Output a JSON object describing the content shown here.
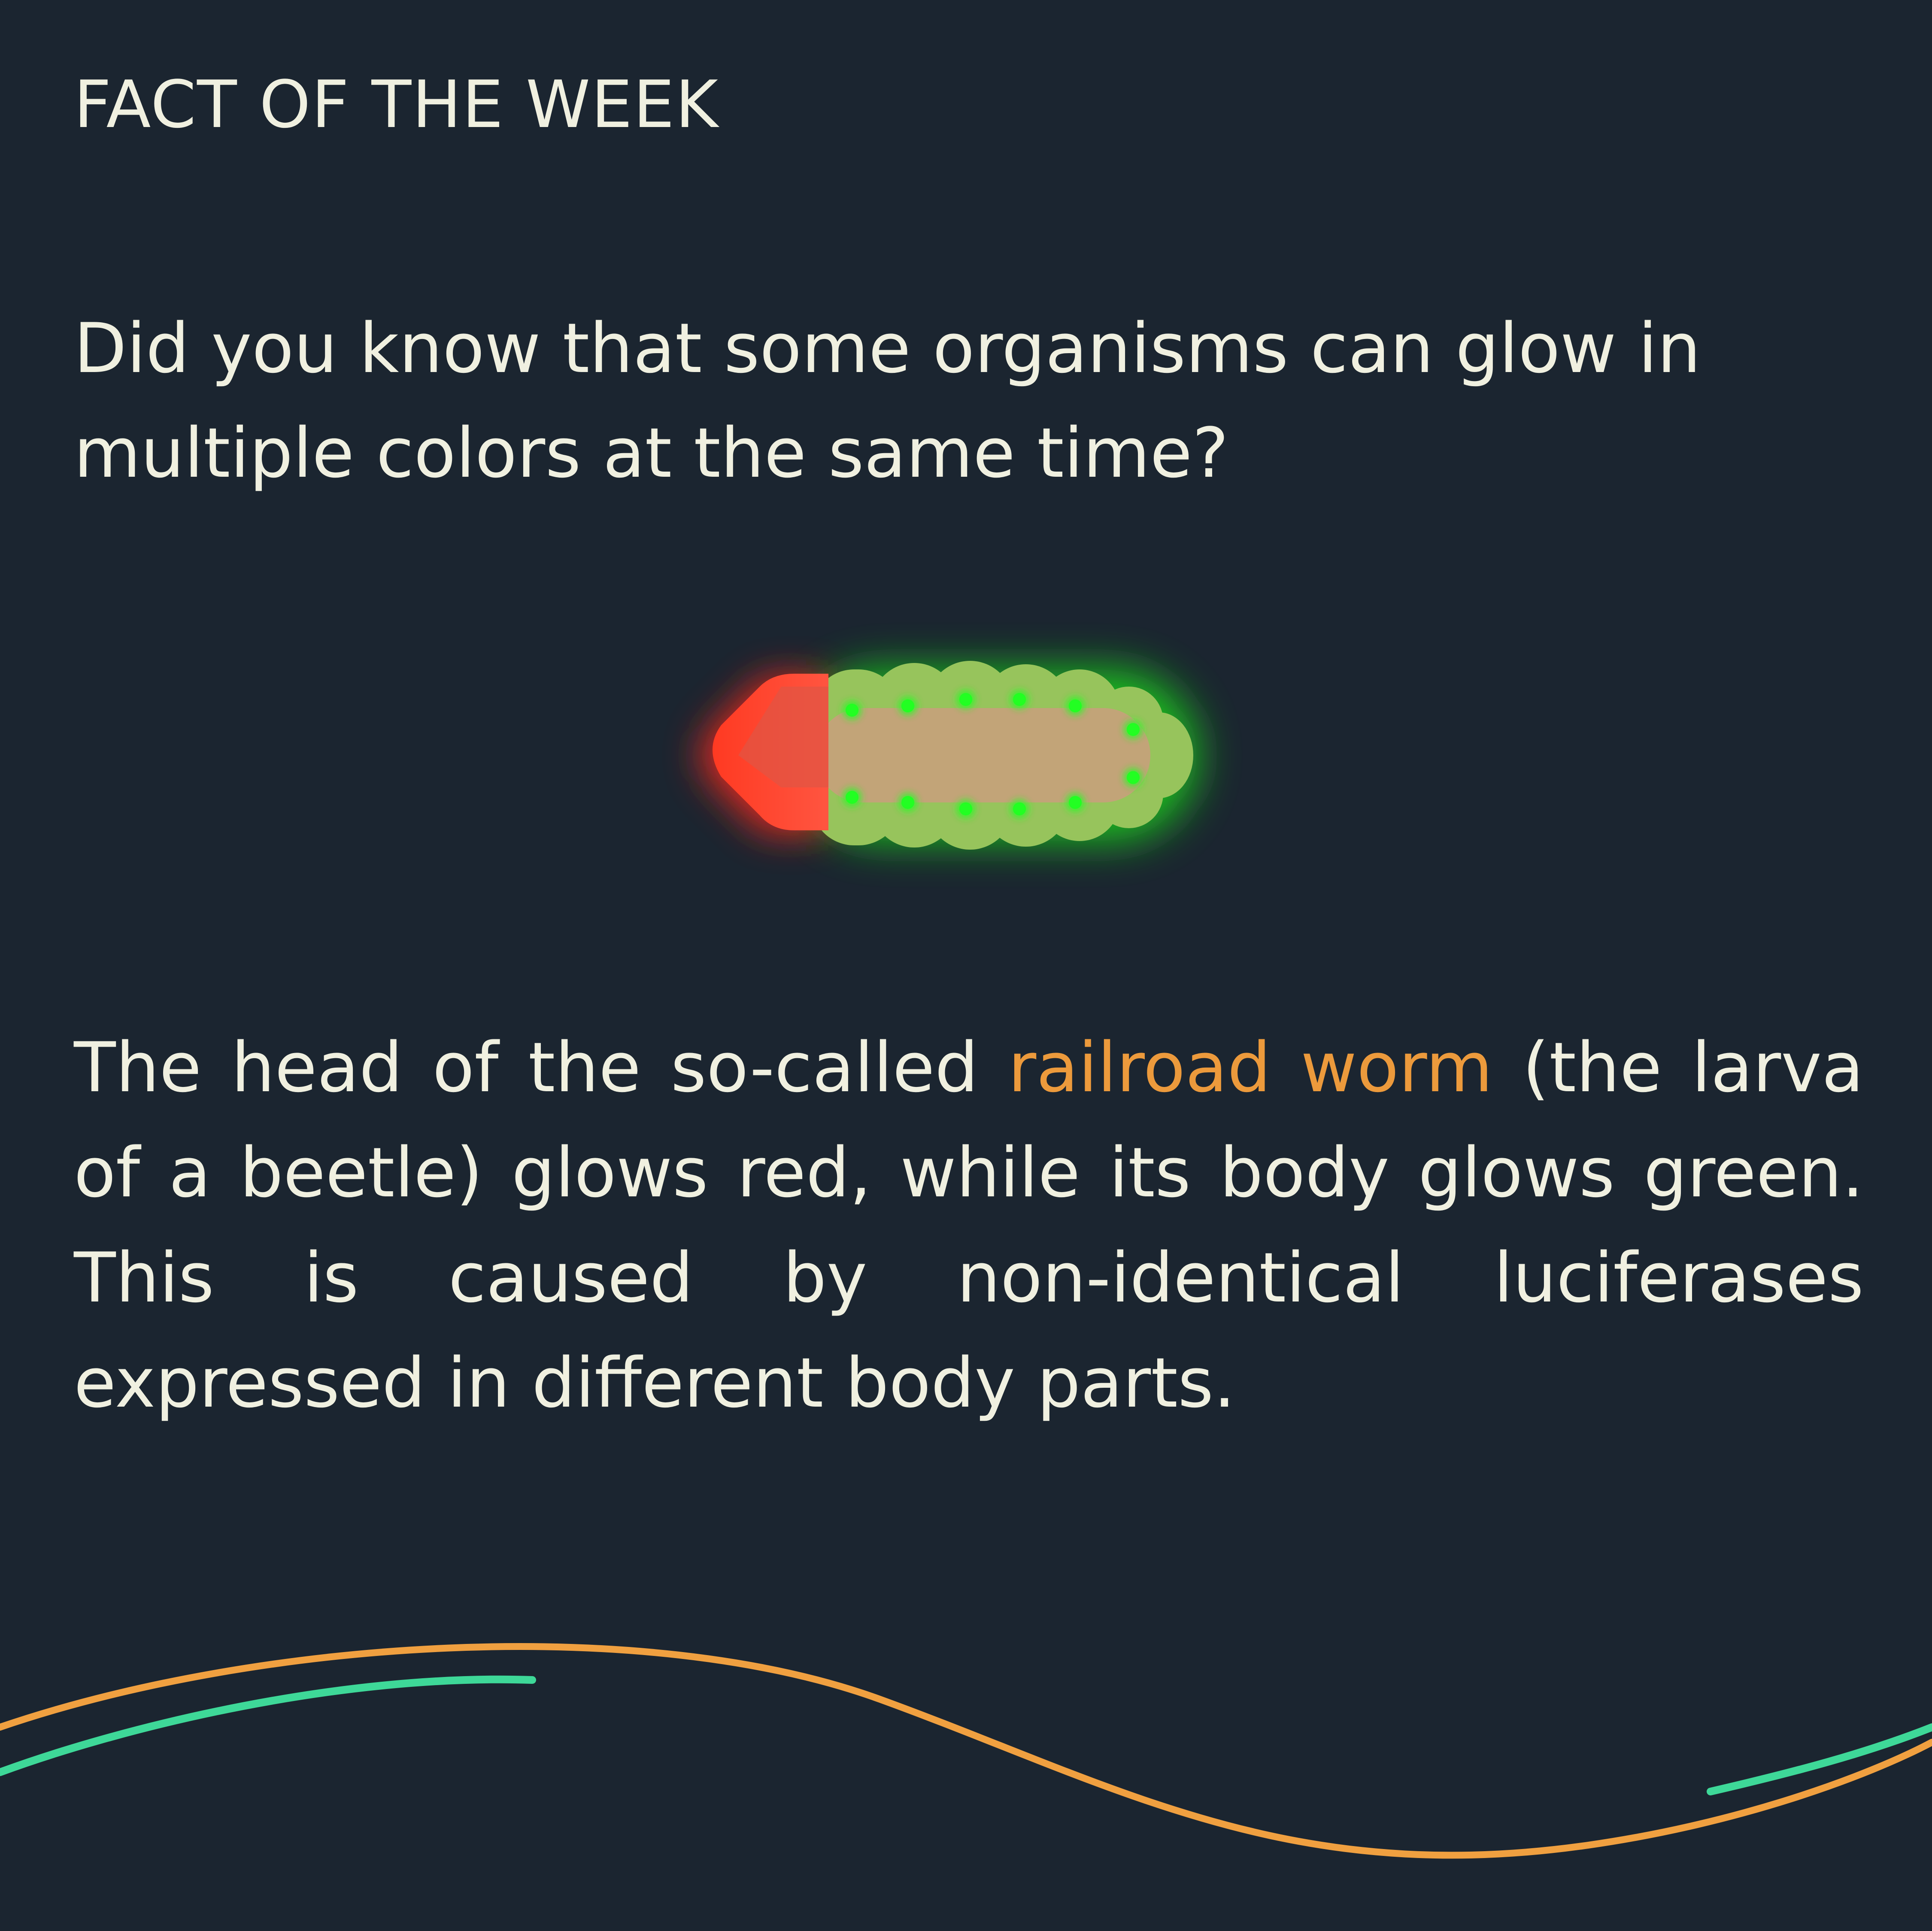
{
  "header": {
    "kicker": "FACT OF THE WEEK"
  },
  "question": {
    "text": "Did you know that some organisms can glow in multiple colors at the same time?"
  },
  "answer": {
    "before": "The head of the so-called ",
    "highlight": "railroad worm",
    "after": " (the larva of a beetle) glows red, while its body glows green. This is caused by non-identical luciferases expressed in different body parts."
  },
  "colors": {
    "background": "#1b2530",
    "text": "#f0f0e0",
    "highlight": "#ec9a3c",
    "wave_orange": "#f0a040",
    "wave_green": "#3ed898",
    "glow_red": "#ff2a1a",
    "glow_green": "#1fe01f",
    "body": "#c8a877"
  },
  "illustration": {
    "icon": "glowing-larva-icon"
  }
}
